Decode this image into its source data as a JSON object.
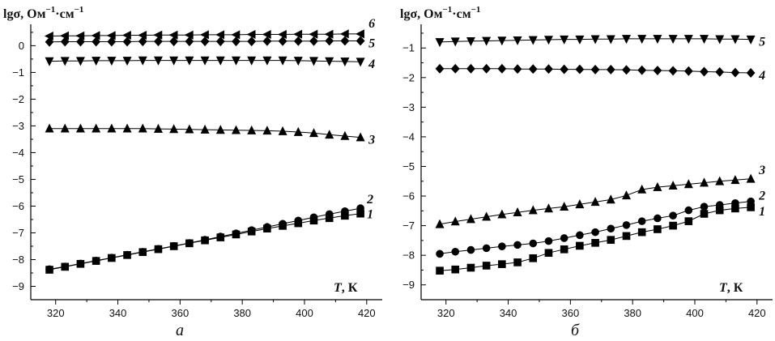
{
  "chart_data": [
    {
      "type": "line",
      "panel_label": "а",
      "ylabel_main": "lgσ, Ом",
      "ylabel_sup": "−1",
      "ylabel_mid": "·см",
      "ylabel_sup2": "−1",
      "xlabel_var": "T",
      "xlabel_unit": ", К",
      "xlim": [
        312,
        425
      ],
      "ylim": [
        -9.5,
        0.8
      ],
      "x_ticks": [
        320,
        340,
        360,
        380,
        400,
        420
      ],
      "x_tick_labels": [
        "320",
        "340",
        "360",
        "380",
        "400",
        "420"
      ],
      "y_ticks": [
        -9,
        -8,
        -7,
        -6,
        -5,
        -4,
        -3,
        -2,
        -1,
        0
      ],
      "y_tick_labels": [
        "−9",
        "−8",
        "−7",
        "−6",
        "−5",
        "−4",
        "−3",
        "−2",
        "−1",
        "0"
      ],
      "series": [
        {
          "name": "1",
          "marker": "square",
          "x": [
            318,
            323,
            328,
            333,
            338,
            343,
            348,
            353,
            358,
            363,
            368,
            373,
            378,
            383,
            388,
            393,
            398,
            403,
            408,
            413,
            418
          ],
          "y": [
            -8.38,
            -8.27,
            -8.16,
            -8.05,
            -7.94,
            -7.83,
            -7.72,
            -7.61,
            -7.5,
            -7.39,
            -7.28,
            -7.17,
            -7.06,
            -6.95,
            -6.84,
            -6.74,
            -6.64,
            -6.54,
            -6.45,
            -6.36,
            -6.28
          ]
        },
        {
          "name": "2",
          "marker": "circle",
          "x": [
            318,
            323,
            328,
            333,
            338,
            343,
            348,
            353,
            358,
            363,
            368,
            373,
            378,
            383,
            388,
            393,
            398,
            403,
            408,
            413,
            418
          ],
          "y": [
            -8.36,
            -8.26,
            -8.15,
            -8.04,
            -7.93,
            -7.82,
            -7.71,
            -7.6,
            -7.49,
            -7.38,
            -7.26,
            -7.14,
            -7.02,
            -6.9,
            -6.78,
            -6.66,
            -6.54,
            -6.42,
            -6.3,
            -6.19,
            -6.08
          ]
        },
        {
          "name": "3",
          "marker": "triangle-up",
          "x": [
            318,
            323,
            328,
            333,
            338,
            343,
            348,
            353,
            358,
            363,
            368,
            373,
            378,
            383,
            388,
            393,
            398,
            403,
            408,
            413,
            418
          ],
          "y": [
            -3.1,
            -3.1,
            -3.1,
            -3.1,
            -3.1,
            -3.1,
            -3.1,
            -3.11,
            -3.12,
            -3.13,
            -3.14,
            -3.15,
            -3.16,
            -3.17,
            -3.18,
            -3.2,
            -3.23,
            -3.27,
            -3.33,
            -3.38,
            -3.43
          ]
        },
        {
          "name": "4",
          "marker": "triangle-down",
          "x": [
            318,
            323,
            328,
            333,
            338,
            343,
            348,
            353,
            358,
            363,
            368,
            373,
            378,
            383,
            388,
            393,
            398,
            403,
            408,
            413,
            418
          ],
          "y": [
            -0.58,
            -0.57,
            -0.57,
            -0.56,
            -0.56,
            -0.56,
            -0.55,
            -0.55,
            -0.55,
            -0.55,
            -0.55,
            -0.55,
            -0.55,
            -0.55,
            -0.55,
            -0.55,
            -0.56,
            -0.57,
            -0.58,
            -0.59,
            -0.6
          ]
        },
        {
          "name": "5",
          "marker": "diamond",
          "x": [
            318,
            323,
            328,
            333,
            338,
            343,
            348,
            353,
            358,
            363,
            368,
            373,
            378,
            383,
            388,
            393,
            398,
            403,
            408,
            413,
            418
          ],
          "y": [
            0.14,
            0.15,
            0.15,
            0.15,
            0.15,
            0.15,
            0.16,
            0.16,
            0.16,
            0.16,
            0.16,
            0.16,
            0.16,
            0.16,
            0.17,
            0.17,
            0.17,
            0.17,
            0.18,
            0.18,
            0.18
          ]
        },
        {
          "name": "6",
          "marker": "triangle-left",
          "x": [
            318,
            323,
            328,
            333,
            338,
            343,
            348,
            353,
            358,
            363,
            368,
            373,
            378,
            383,
            388,
            393,
            398,
            403,
            408,
            413,
            418
          ],
          "y": [
            0.36,
            0.37,
            0.37,
            0.38,
            0.38,
            0.39,
            0.39,
            0.4,
            0.4,
            0.4,
            0.41,
            0.41,
            0.41,
            0.42,
            0.42,
            0.42,
            0.43,
            0.43,
            0.43,
            0.44,
            0.44
          ]
        }
      ]
    },
    {
      "type": "line",
      "panel_label": "б",
      "ylabel_main": "lgσ, Ом",
      "ylabel_sup": "−1",
      "ylabel_mid": "·см",
      "ylabel_sup2": "−1",
      "xlabel_var": "T",
      "xlabel_unit": ", К",
      "xlim": [
        312,
        425
      ],
      "ylim": [
        -9.5,
        -0.2
      ],
      "x_ticks": [
        320,
        340,
        360,
        380,
        400,
        420
      ],
      "x_tick_labels": [
        "320",
        "340",
        "360",
        "380",
        "400",
        "420"
      ],
      "y_ticks": [
        -9,
        -8,
        -7,
        -6,
        -5,
        -4,
        -3,
        -2,
        -1
      ],
      "y_tick_labels": [
        "−9",
        "−8",
        "−7",
        "−6",
        "−5",
        "−4",
        "−3",
        "−2",
        "−1"
      ],
      "series": [
        {
          "name": "1",
          "marker": "square",
          "x": [
            318,
            323,
            328,
            333,
            338,
            343,
            348,
            353,
            358,
            363,
            368,
            373,
            378,
            383,
            388,
            393,
            398,
            403,
            408,
            413,
            418
          ],
          "y": [
            -8.52,
            -8.48,
            -8.42,
            -8.35,
            -8.3,
            -8.24,
            -8.1,
            -7.92,
            -7.8,
            -7.68,
            -7.58,
            -7.48,
            -7.35,
            -7.22,
            -7.12,
            -7.0,
            -6.85,
            -6.6,
            -6.48,
            -6.42,
            -6.38
          ]
        },
        {
          "name": "2",
          "marker": "circle",
          "x": [
            318,
            323,
            328,
            333,
            338,
            343,
            348,
            353,
            358,
            363,
            368,
            373,
            378,
            383,
            388,
            393,
            398,
            403,
            408,
            413,
            418
          ],
          "y": [
            -7.95,
            -7.88,
            -7.82,
            -7.76,
            -7.7,
            -7.65,
            -7.6,
            -7.52,
            -7.42,
            -7.32,
            -7.22,
            -7.1,
            -6.98,
            -6.85,
            -6.75,
            -6.66,
            -6.48,
            -6.36,
            -6.3,
            -6.24,
            -6.18
          ]
        },
        {
          "name": "3",
          "marker": "triangle-up",
          "x": [
            318,
            323,
            328,
            333,
            338,
            343,
            348,
            353,
            358,
            363,
            368,
            373,
            378,
            383,
            388,
            393,
            398,
            403,
            408,
            413,
            418
          ],
          "y": [
            -6.95,
            -6.86,
            -6.78,
            -6.7,
            -6.62,
            -6.55,
            -6.48,
            -6.42,
            -6.36,
            -6.28,
            -6.2,
            -6.12,
            -5.98,
            -5.78,
            -5.7,
            -5.65,
            -5.6,
            -5.55,
            -5.5,
            -5.46,
            -5.42
          ]
        },
        {
          "name": "4",
          "marker": "diamond",
          "x": [
            318,
            323,
            328,
            333,
            338,
            343,
            348,
            353,
            358,
            363,
            368,
            373,
            378,
            383,
            388,
            393,
            398,
            403,
            408,
            413,
            418
          ],
          "y": [
            -1.7,
            -1.7,
            -1.7,
            -1.7,
            -1.7,
            -1.71,
            -1.71,
            -1.71,
            -1.72,
            -1.72,
            -1.73,
            -1.73,
            -1.74,
            -1.75,
            -1.76,
            -1.77,
            -1.78,
            -1.8,
            -1.81,
            -1.83,
            -1.84
          ]
        },
        {
          "name": "5",
          "marker": "triangle-down",
          "x": [
            318,
            323,
            328,
            333,
            338,
            343,
            348,
            353,
            358,
            363,
            368,
            373,
            378,
            383,
            388,
            393,
            398,
            403,
            408,
            413,
            418
          ],
          "y": [
            -0.8,
            -0.78,
            -0.77,
            -0.76,
            -0.75,
            -0.74,
            -0.73,
            -0.72,
            -0.71,
            -0.71,
            -0.7,
            -0.7,
            -0.69,
            -0.69,
            -0.69,
            -0.69,
            -0.69,
            -0.69,
            -0.7,
            -0.7,
            -0.71
          ]
        }
      ]
    }
  ]
}
